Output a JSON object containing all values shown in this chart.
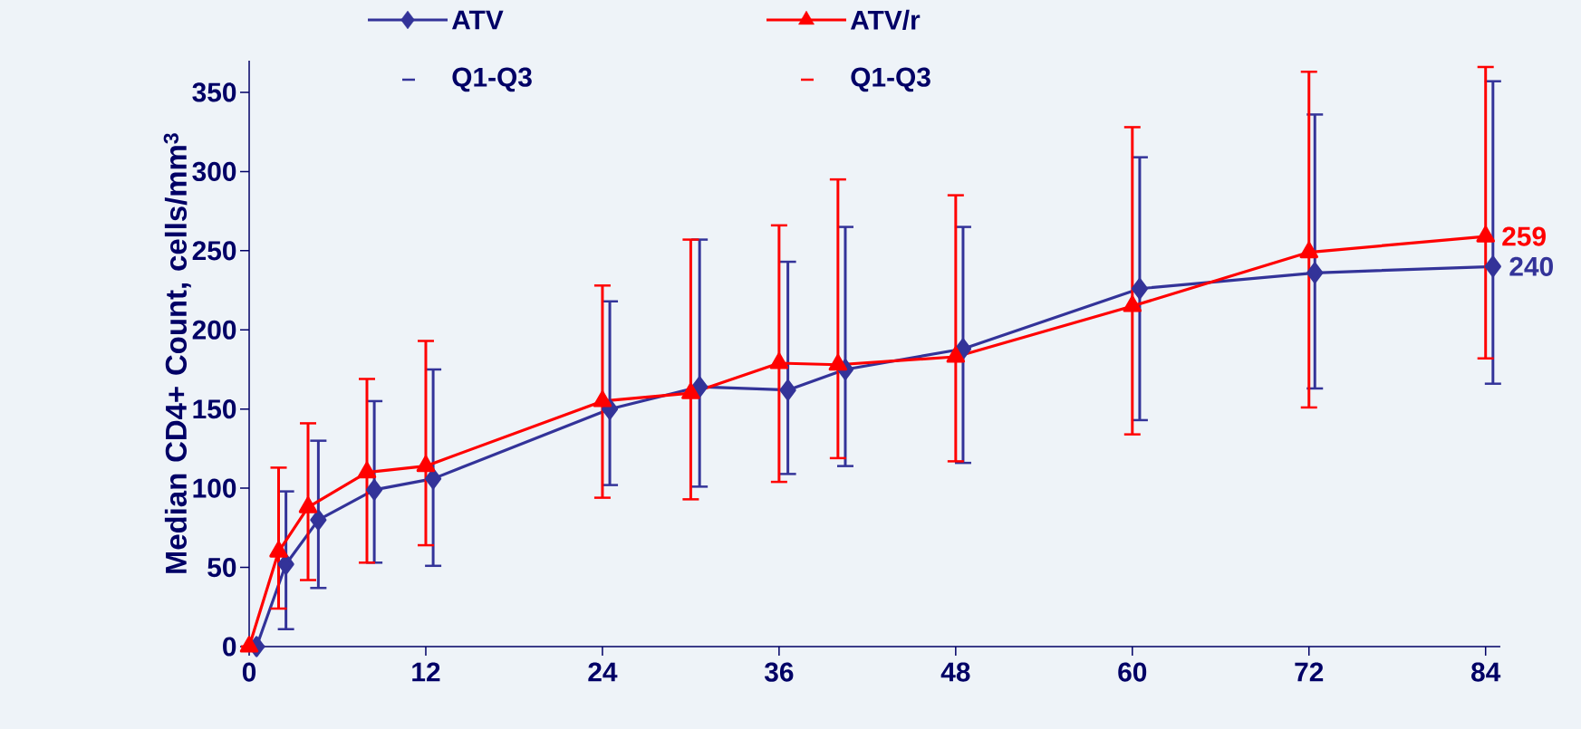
{
  "chart_data": {
    "type": "line",
    "ylabel": "Median CD4+ Count, cells/mm$^{3}$",
    "xlim": [
      0,
      85
    ],
    "ylim": [
      0,
      370
    ],
    "xticks": [
      0,
      12,
      24,
      36,
      48,
      60,
      72,
      84
    ],
    "yticks": [
      0,
      50,
      100,
      150,
      200,
      250,
      300,
      350
    ],
    "legend": "top",
    "annotations": [
      "Q1-Q3",
      "Q1-Q3"
    ],
    "series": [
      {
        "name": "ATV",
        "color": "#333399",
        "marker": "diamond",
        "x": [
          0.5,
          2.5,
          4.7,
          8.5,
          12.5,
          24.5,
          30.6,
          36.6,
          40.5,
          48.5,
          60.5,
          72.4,
          84.5
        ],
        "values": [
          0,
          52,
          80,
          99,
          106,
          150,
          164,
          162,
          175,
          188,
          226,
          236,
          240
        ],
        "errors": [
          null,
          [
            11,
            98
          ],
          [
            37,
            130
          ],
          [
            53,
            155
          ],
          [
            51,
            175
          ],
          [
            102,
            218
          ],
          [
            101,
            257
          ],
          [
            109,
            243
          ],
          [
            114,
            265
          ],
          [
            116,
            265
          ],
          [
            143,
            309
          ],
          [
            163,
            336
          ],
          [
            166,
            357
          ]
        ],
        "value_labels": [
          null,
          null,
          null,
          null,
          null,
          null,
          null,
          null,
          null,
          null,
          null,
          null,
          "240"
        ]
      },
      {
        "name": "ATV/r",
        "color": "#ff0000",
        "marker": "triangle",
        "x": [
          0,
          2,
          4,
          8,
          12,
          24,
          30,
          36,
          40,
          48,
          60,
          72,
          84
        ],
        "values": [
          0,
          60,
          88,
          110,
          114,
          155,
          160,
          179,
          178,
          183,
          215,
          249,
          259
        ],
        "errors": [
          null,
          [
            24,
            113
          ],
          [
            42,
            141
          ],
          [
            53,
            169
          ],
          [
            64,
            193
          ],
          [
            94,
            228
          ],
          [
            93,
            257
          ],
          [
            104,
            266
          ],
          [
            119,
            295
          ],
          [
            117,
            285
          ],
          [
            134,
            328
          ],
          [
            151,
            363
          ],
          [
            182,
            366
          ]
        ],
        "value_labels": [
          null,
          null,
          null,
          null,
          null,
          null,
          null,
          null,
          null,
          null,
          null,
          null,
          "259"
        ]
      }
    ]
  }
}
